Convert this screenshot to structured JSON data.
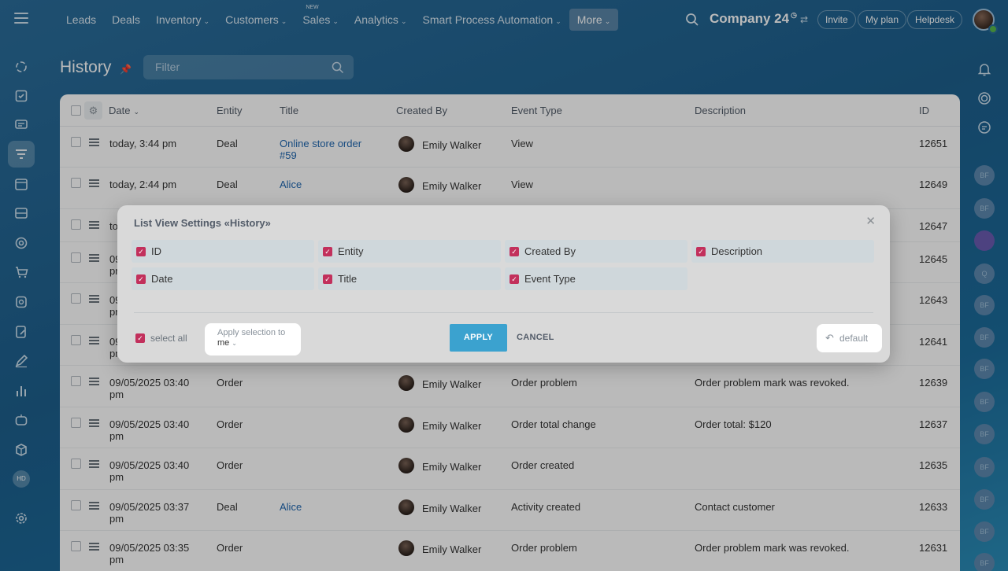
{
  "nav": {
    "items": [
      {
        "label": "Leads",
        "chevron": false
      },
      {
        "label": "Deals",
        "chevron": false
      },
      {
        "label": "Inventory",
        "chevron": true
      },
      {
        "label": "Customers",
        "chevron": true
      },
      {
        "label": "Sales",
        "chevron": true,
        "tag": "NEW"
      },
      {
        "label": "Analytics",
        "chevron": true
      },
      {
        "label": "Smart Process Automation",
        "chevron": true
      },
      {
        "label": "More",
        "chevron": true
      }
    ],
    "company": "Company 24",
    "invite": "Invite",
    "my_plan": "My plan",
    "helpdesk": "Helpdesk"
  },
  "sidebar": {
    "hd_badge": "HD"
  },
  "rightbar": {
    "avatars": [
      "BF",
      "BF",
      "",
      "Q",
      "BF",
      "BF",
      "BF",
      "BF",
      "BF",
      "BF",
      "BF",
      "BF",
      "BF"
    ]
  },
  "page": {
    "title": "History",
    "filter_placeholder": "Filter"
  },
  "table": {
    "headers": {
      "date": "Date",
      "entity": "Entity",
      "title": "Title",
      "created_by": "Created By",
      "event_type": "Event Type",
      "description": "Description",
      "id": "ID"
    },
    "rows": [
      {
        "date": "today, 3:44 pm",
        "entity": "Deal",
        "title": "Online store order #59",
        "user": "Emily Walker",
        "event": "View",
        "desc": "",
        "id": "12651"
      },
      {
        "date": "today, 2:44 pm",
        "entity": "Deal",
        "title": "Alice",
        "user": "Emily Walker",
        "event": "View",
        "desc": "",
        "id": "12649"
      },
      {
        "date": "today, 2:44 pm",
        "entity": "",
        "title": "",
        "user": "",
        "event": "",
        "desc": "",
        "id": "12647"
      },
      {
        "date": "09/05/2025 03:41 pm",
        "entity": "",
        "title": "",
        "user": "",
        "event": "",
        "desc": "",
        "id": "12645"
      },
      {
        "date": "09/05/2025 03:41 pm",
        "entity": "",
        "title": "",
        "user": "",
        "event": "",
        "desc": "",
        "id": "12643"
      },
      {
        "date": "09/05/2025 03:41 pm",
        "entity": "",
        "title": "",
        "user": "",
        "event": "",
        "desc": "",
        "id": "12641"
      },
      {
        "date": "09/05/2025 03:40 pm",
        "entity": "Order",
        "title": "",
        "user": "Emily Walker",
        "event": "Order problem",
        "desc": "Order problem mark was revoked.",
        "id": "12639"
      },
      {
        "date": "09/05/2025 03:40 pm",
        "entity": "Order",
        "title": "",
        "user": "Emily Walker",
        "event": "Order total change",
        "desc": "Order total: $120",
        "id": "12637"
      },
      {
        "date": "09/05/2025 03:40 pm",
        "entity": "Order",
        "title": "",
        "user": "Emily Walker",
        "event": "Order created",
        "desc": "",
        "id": "12635"
      },
      {
        "date": "09/05/2025 03:37 pm",
        "entity": "Deal",
        "title": "Alice",
        "user": "Emily Walker",
        "event": "Activity created",
        "desc": "Contact customer",
        "id": "12633"
      },
      {
        "date": "09/05/2025 03:35 pm",
        "entity": "Order",
        "title": "",
        "user": "Emily Walker",
        "event": "Order problem",
        "desc": "Order problem mark was revoked.",
        "id": "12631"
      }
    ]
  },
  "dialog": {
    "title": "List View Settings «History»",
    "options": [
      {
        "label": "ID",
        "checked": true
      },
      {
        "label": "Entity",
        "checked": true
      },
      {
        "label": "Created By",
        "checked": true
      },
      {
        "label": "Description",
        "checked": true
      },
      {
        "label": "Date",
        "checked": true
      },
      {
        "label": "Title",
        "checked": true
      },
      {
        "label": "Event Type",
        "checked": true
      }
    ],
    "select_all": "select all",
    "apply_selection_label": "Apply selection to",
    "apply_selection_value": "me",
    "apply": "APPLY",
    "cancel": "CANCEL",
    "default": "default"
  }
}
